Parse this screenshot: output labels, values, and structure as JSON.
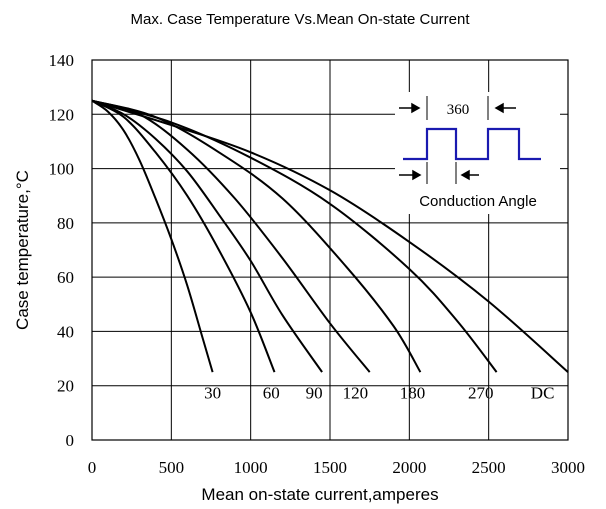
{
  "chart_data": {
    "type": "line",
    "title": "Max. Case Temperature Vs.Mean On-state Current",
    "xlabel": "Mean on-state current,amperes",
    "ylabel": "Case temperature,°C",
    "xlim": [
      0,
      3000
    ],
    "ylim": [
      0,
      140
    ],
    "xticks": [
      0,
      500,
      1000,
      1500,
      2000,
      2500,
      3000
    ],
    "yticks": [
      0,
      20,
      40,
      60,
      80,
      100,
      120,
      140
    ],
    "grid": true,
    "series": [
      {
        "name": "30",
        "label_at": [
          760,
          22
        ],
        "points": [
          [
            0,
            125
          ],
          [
            100,
            121
          ],
          [
            200,
            114
          ],
          [
            300,
            103
          ],
          [
            400,
            89
          ],
          [
            500,
            74
          ],
          [
            600,
            57
          ],
          [
            700,
            37
          ],
          [
            760,
            25
          ]
        ]
      },
      {
        "name": "60",
        "label_at": [
          1130,
          22
        ],
        "points": [
          [
            0,
            125
          ],
          [
            200,
            119
          ],
          [
            400,
            106
          ],
          [
            600,
            90
          ],
          [
            800,
            70
          ],
          [
            1000,
            47
          ],
          [
            1150,
            25
          ]
        ]
      },
      {
        "name": "90",
        "label_at": [
          1400,
          22
        ],
        "points": [
          [
            0,
            125
          ],
          [
            200,
            120
          ],
          [
            400,
            111
          ],
          [
            600,
            99
          ],
          [
            800,
            83
          ],
          [
            1000,
            66
          ],
          [
            1200,
            46
          ],
          [
            1450,
            25
          ]
        ]
      },
      {
        "name": "120",
        "label_at": [
          1660,
          22
        ],
        "points": [
          [
            0,
            125
          ],
          [
            300,
            120
          ],
          [
            600,
            107
          ],
          [
            900,
            89
          ],
          [
            1200,
            67
          ],
          [
            1500,
            43
          ],
          [
            1750,
            25
          ]
        ]
      },
      {
        "name": "180",
        "label_at": [
          2020,
          22
        ],
        "points": [
          [
            0,
            125
          ],
          [
            400,
            119
          ],
          [
            800,
            106
          ],
          [
            1200,
            89
          ],
          [
            1600,
            64
          ],
          [
            1900,
            42
          ],
          [
            2070,
            25
          ]
        ]
      },
      {
        "name": "270",
        "label_at": [
          2450,
          22
        ],
        "points": [
          [
            0,
            125
          ],
          [
            500,
            117
          ],
          [
            1000,
            104
          ],
          [
            1500,
            87
          ],
          [
            2000,
            63
          ],
          [
            2300,
            44
          ],
          [
            2550,
            25
          ]
        ]
      },
      {
        "name": "DC",
        "label_at": [
          2840,
          22
        ],
        "points": [
          [
            0,
            125
          ],
          [
            500,
            116
          ],
          [
            1000,
            106
          ],
          [
            1500,
            92
          ],
          [
            2000,
            73
          ],
          [
            2500,
            51
          ],
          [
            3000,
            25
          ]
        ]
      }
    ],
    "inset": {
      "period_label": "360",
      "caption": "Conduction Angle"
    },
    "colors": {
      "curves": "#000000",
      "grid": "#000000",
      "inset_wave": "#1a1ab0"
    }
  }
}
